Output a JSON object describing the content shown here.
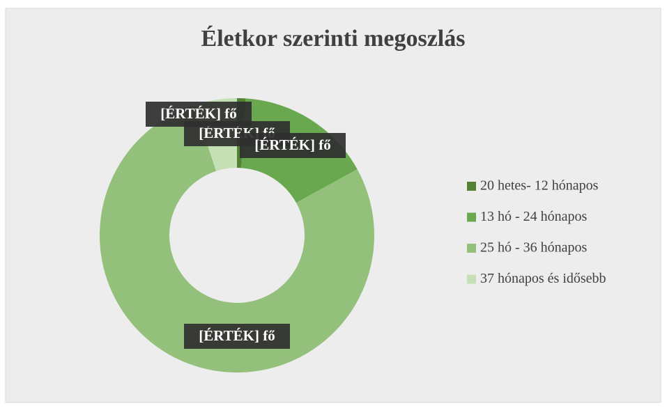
{
  "chart_data": {
    "type": "donut",
    "title": "Életkor szerinti megoszlás",
    "categories": [
      "20 hetes- 12 hónapos",
      "13 hó - 24 hónapos",
      "25 hó - 36 hónapos",
      "37 hónapos és idősebb"
    ],
    "values": [
      1,
      16,
      78,
      5
    ],
    "value_labels": [
      "[ÉRTÉK] fő",
      "[ÉRTÉK] fő",
      "[ÉRTÉK] fő",
      "[ÉRTÉK] fő"
    ],
    "colors": [
      "#548235",
      "#6aa84f",
      "#93c07a",
      "#c5e0b4"
    ],
    "legend": "right"
  }
}
